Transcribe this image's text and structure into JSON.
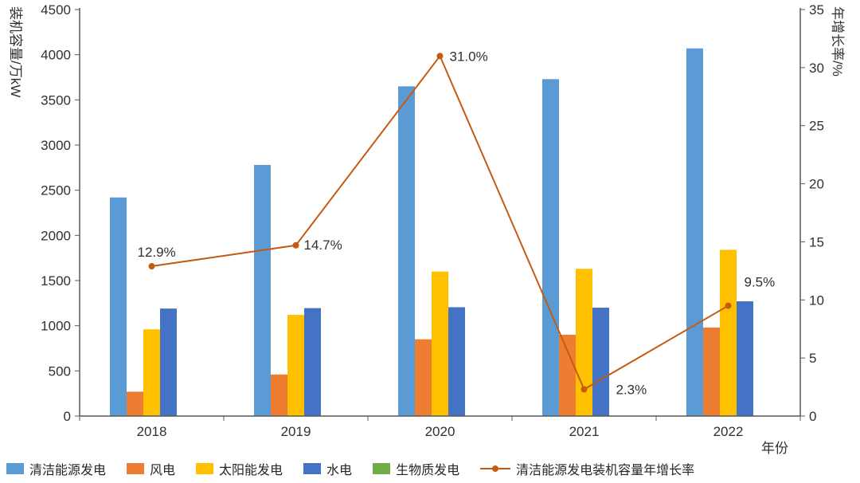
{
  "chart_data": {
    "type": "bar",
    "subtype": "grouped bars with secondary-axis line",
    "categories": [
      "2018",
      "2019",
      "2020",
      "2021",
      "2022"
    ],
    "bar_series": [
      {
        "name": "清洁能源发电",
        "color": "#5B9BD5",
        "values": [
          2420,
          2780,
          3650,
          3730,
          4070
        ]
      },
      {
        "name": "风电",
        "color": "#ED7D31",
        "values": [
          270,
          460,
          850,
          900,
          980
        ]
      },
      {
        "name": "太阳能发电",
        "color": "#FFC000",
        "values": [
          960,
          1120,
          1600,
          1630,
          1840
        ]
      },
      {
        "name": "水电",
        "color": "#4472C4",
        "values": [
          1190,
          1195,
          1205,
          1200,
          1270
        ]
      },
      {
        "name": "生物质发电",
        "color": "#70AD47",
        "values": [
          0,
          0,
          0,
          0,
          0
        ]
      }
    ],
    "line_series": {
      "name": "清洁能源发电装机容量年增长率",
      "color": "#C55A11",
      "axis": "right",
      "values": [
        12.9,
        14.7,
        31.0,
        2.3,
        9.5
      ],
      "labels": [
        "12.9%",
        "14.7%",
        "31.0%",
        "2.3%",
        "9.5%"
      ]
    },
    "left_axis": {
      "label": "装机容量/万kW",
      "min": 0,
      "max": 4500,
      "step": 500,
      "ticks": [
        0,
        500,
        1000,
        1500,
        2000,
        2500,
        3000,
        3500,
        4000,
        4500
      ]
    },
    "right_axis": {
      "label": "年增长率/%",
      "min": 0,
      "max": 35,
      "step": 5,
      "ticks": [
        0,
        5,
        10,
        15,
        20,
        25,
        30,
        35
      ]
    },
    "x_axis": {
      "label": "年份"
    },
    "legend_position": "bottom",
    "grid": false,
    "background": "#FFFFFF",
    "text_color": "#303030",
    "axis_color": "#595959"
  }
}
